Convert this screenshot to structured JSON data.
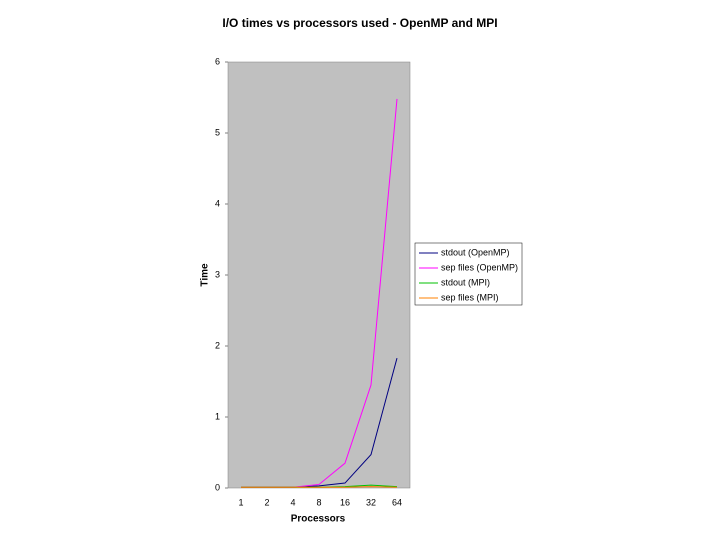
{
  "chart_data": {
    "type": "line",
    "title": "I/O times vs processors used - OpenMP and MPI",
    "x_label": "Processors",
    "y_label": "Time",
    "categories": [
      "1",
      "2",
      "4",
      "8",
      "16",
      "32",
      "64"
    ],
    "series": [
      {
        "name": "stdout (OpenMP)",
        "color": "#000080",
        "values": [
          0.01,
          0.01,
          0.01,
          0.03,
          0.07,
          0.47,
          1.83
        ]
      },
      {
        "name": "sep files (OpenMP)",
        "color": "#ff00ff",
        "values": [
          0.01,
          0.01,
          0.01,
          0.05,
          0.35,
          1.45,
          5.48
        ]
      },
      {
        "name": "stdout (MPI)",
        "color": "#00c000",
        "values": [
          0.01,
          0.01,
          0.01,
          0.01,
          0.02,
          0.04,
          0.02
        ]
      },
      {
        "name": "sep files (MPI)",
        "color": "#ff8000",
        "values": [
          0.01,
          0.01,
          0.01,
          0.01,
          0.01,
          0.02,
          0.01
        ]
      }
    ],
    "ylim": [
      0,
      6
    ],
    "yticks": [
      0,
      1,
      2,
      3,
      4,
      5,
      6
    ],
    "grid": false,
    "legend": "right"
  }
}
